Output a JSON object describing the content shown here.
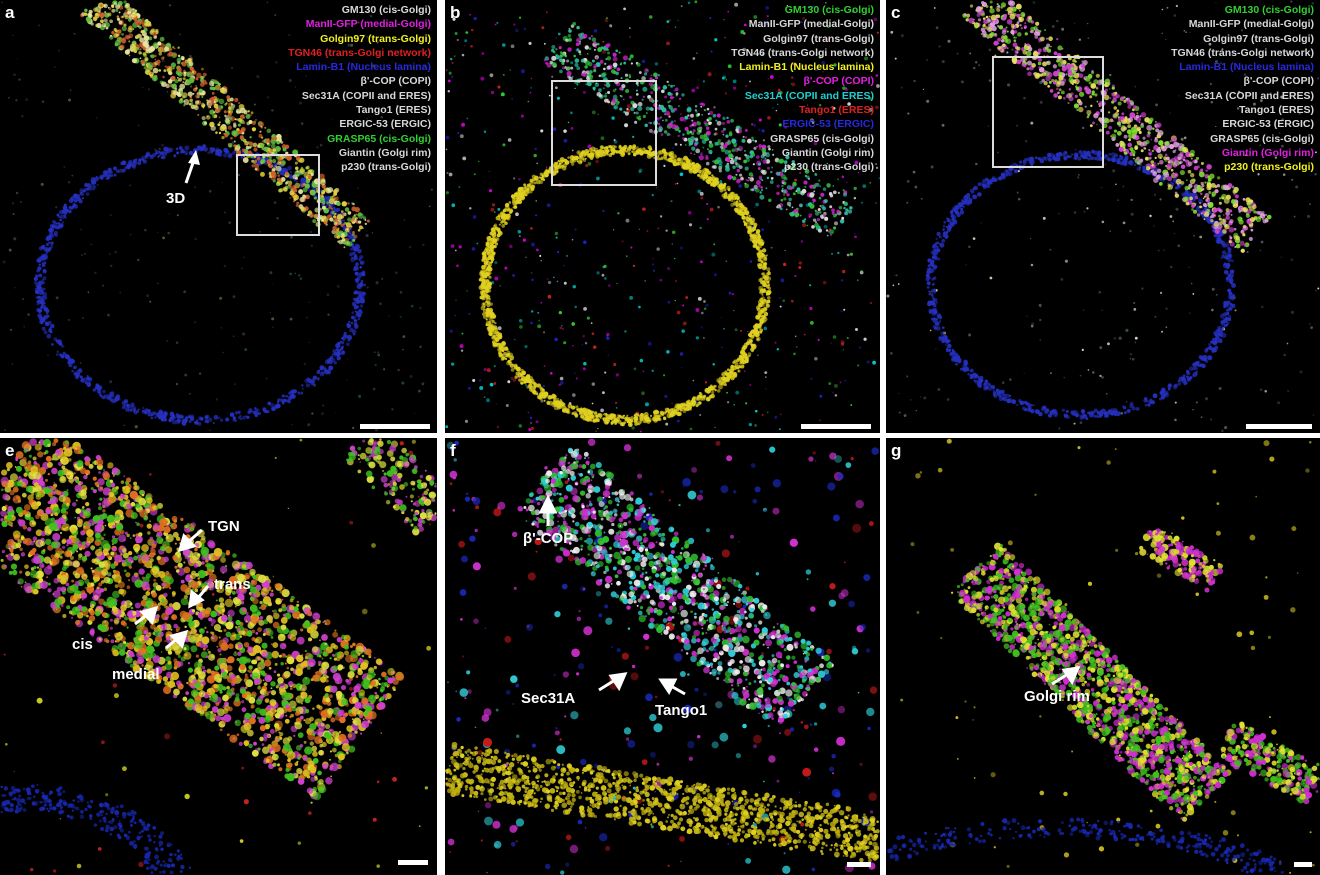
{
  "panels": {
    "a": {
      "letter": "a",
      "legend": [
        {
          "text": "GM130 (cis-Golgi)",
          "color": "#d8d8d8"
        },
        {
          "text": "ManII-GFP (medial-Golgi)",
          "color": "#e020e0"
        },
        {
          "text": "Golgin97 (trans-Golgi)",
          "color": "#f0f020"
        },
        {
          "text": "TGN46 (trans-Golgi network)",
          "color": "#e02020"
        },
        {
          "text": "Lamin-B1 (Nucleus lamina)",
          "color": "#2828e0"
        },
        {
          "text": "β'-COP (COPI)",
          "color": "#d8d8d8"
        },
        {
          "text": "Sec31A (COPII and ERES)",
          "color": "#d8d8d8"
        },
        {
          "text": "Tango1 (ERES)",
          "color": "#d8d8d8"
        },
        {
          "text": "ERGIC-53 (ERGIC)",
          "color": "#d8d8d8"
        },
        {
          "text": "GRASP65 (cis-Golgi)",
          "color": "#30d030"
        },
        {
          "text": "Giantin (Golgi rim)",
          "color": "#d8d8d8"
        },
        {
          "text": "p230 (trans-Golgi)",
          "color": "#d8d8d8"
        }
      ],
      "arrow_label": "3D"
    },
    "b": {
      "letter": "b",
      "legend": [
        {
          "text": "GM130 (cis-Golgi)",
          "color": "#30d030"
        },
        {
          "text": "ManII-GFP (medial-Golgi)",
          "color": "#d8d8d8"
        },
        {
          "text": "Golgin97 (trans-Golgi)",
          "color": "#d8d8d8"
        },
        {
          "text": "TGN46 (trans-Golgi network)",
          "color": "#d8d8d8"
        },
        {
          "text": "Lamin-B1 (Nucleus lamina)",
          "color": "#f0f020"
        },
        {
          "text": "β'-COP (COPI)",
          "color": "#e020e0"
        },
        {
          "text": "Sec31A (COPII and ERES)",
          "color": "#20d0d0"
        },
        {
          "text": "Tango1 (ERES)",
          "color": "#e02020"
        },
        {
          "text": "ERGIC-53 (ERGIC)",
          "color": "#2828e0"
        },
        {
          "text": "GRASP65 (cis-Golgi)",
          "color": "#d8d8d8"
        },
        {
          "text": "Giantin (Golgi rim)",
          "color": "#d8d8d8"
        },
        {
          "text": "p230 (trans-Golgi)",
          "color": "#d8d8d8"
        }
      ]
    },
    "c": {
      "letter": "c",
      "legend": [
        {
          "text": "GM130 (cis-Golgi)",
          "color": "#30d030"
        },
        {
          "text": "ManII-GFP (medial-Golgi)",
          "color": "#d8d8d8"
        },
        {
          "text": "Golgin97 (trans-Golgi)",
          "color": "#d8d8d8"
        },
        {
          "text": "TGN46 (trans-Golgi network)",
          "color": "#d8d8d8"
        },
        {
          "text": "Lamin-B1 (Nucleus lamina)",
          "color": "#2828e0"
        },
        {
          "text": "β'-COP (COPI)",
          "color": "#d8d8d8"
        },
        {
          "text": "Sec31A (COPII and ERES)",
          "color": "#d8d8d8"
        },
        {
          "text": "Tango1 (ERES)",
          "color": "#d8d8d8"
        },
        {
          "text": "ERGIC-53 (ERGIC)",
          "color": "#d8d8d8"
        },
        {
          "text": "GRASP65 (cis-Golgi)",
          "color": "#d8d8d8"
        },
        {
          "text": "Giantin (Golgi rim)",
          "color": "#e020e0"
        },
        {
          "text": "p230 (trans-Golgi)",
          "color": "#f0f020"
        }
      ]
    },
    "e": {
      "letter": "e",
      "labels": [
        "TGN",
        "trans",
        "cis",
        "medial"
      ]
    },
    "f": {
      "letter": "f",
      "labels": [
        "β'-COP",
        "Sec31A",
        "Tango1"
      ]
    },
    "g": {
      "letter": "g",
      "labels": [
        "Golgi rim"
      ]
    }
  }
}
